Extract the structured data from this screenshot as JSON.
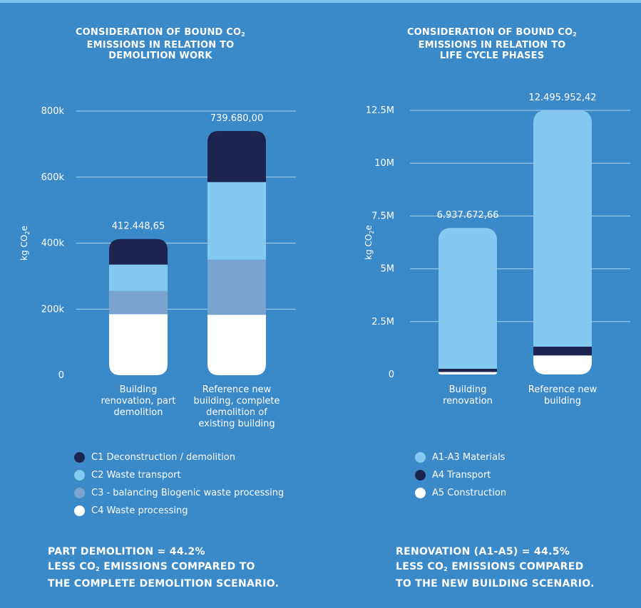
{
  "colors": {
    "background": "#3a89c9",
    "C1": "#1e2450",
    "C2": "#84c9f0",
    "C3": "#7aa3d0",
    "C4": "#ffffff",
    "A1A3": "#84c9f0",
    "A4": "#1e2450",
    "A5": "#ffffff"
  },
  "left": {
    "title_pre": "CONSIDERATION OF BOUND CO",
    "title_sub": "2",
    "title_l2": "EMISSIONS IN RELATION TO",
    "title_l3": "DEMOLITION WORK",
    "ylabel_pre": "kg CO",
    "ylabel_sub": "2",
    "ylabel_post": "e",
    "legend": [
      {
        "label": "C1 Deconstruction / demolition",
        "color": "#1e2450"
      },
      {
        "label": "C2 Waste transport",
        "color": "#84c9f0"
      },
      {
        "label": "C3 - balancing Biogenic waste processing",
        "color": "#7aa3d0"
      },
      {
        "label": "C4 Waste processing",
        "color": "#ffffff"
      }
    ],
    "summary_l1": "PART DEMOLITION = 44.2%",
    "summary_l2_pre": "LESS CO",
    "summary_l2_sub": "2",
    "summary_l2_post": " EMISSIONS COMPARED TO",
    "summary_l3": "THE COMPLETE DEMOLITION SCENARIO."
  },
  "right": {
    "title_pre": "CONSIDERATION OF BOUND CO",
    "title_sub": "2",
    "title_l2": "EMISSIONS IN RELATION TO",
    "title_l3": "LIFE CYCLE PHASES",
    "ylabel_pre": "kg CO",
    "ylabel_sub": "2",
    "ylabel_post": "e",
    "legend": [
      {
        "label": "A1-A3 Materials",
        "color": "#84c9f0"
      },
      {
        "label": "A4 Transport",
        "color": "#1e2450"
      },
      {
        "label": "A5 Construction",
        "color": "#ffffff"
      }
    ],
    "summary_l1": "RENOVATION (A1-A5) = 44.5%",
    "summary_l2_pre": "LESS CO",
    "summary_l2_sub": "2",
    "summary_l2_post": " EMISSIONS COMPARED",
    "summary_l3": "TO THE NEW BUILDING SCENARIO."
  },
  "chart_data": [
    {
      "type": "bar",
      "stacked": true,
      "ylabel": "kg CO2e",
      "ylim": [
        0,
        800000
      ],
      "yticks": [
        0,
        200000,
        400000,
        600000,
        800000
      ],
      "ytick_labels": [
        "0",
        "200k",
        "400k",
        "600k",
        "800k"
      ],
      "categories": [
        [
          "Building",
          "renovation, part",
          "demolition"
        ],
        [
          "Reference new",
          "building, complete",
          "demolition of",
          "existing building"
        ]
      ],
      "totals_labels": [
        "412.448,65",
        "739.680,00"
      ],
      "series": [
        {
          "name": "C4 Waste processing",
          "color": "#ffffff",
          "values": [
            185000,
            183000
          ]
        },
        {
          "name": "C3 - balancing Biogenic waste processing",
          "color": "#7aa3d0",
          "values": [
            70000,
            167000
          ]
        },
        {
          "name": "C2 Waste transport",
          "color": "#84c9f0",
          "values": [
            80000,
            235000
          ]
        },
        {
          "name": "C1 Deconstruction / demolition",
          "color": "#1e2450",
          "values": [
            77448.65,
            154680
          ]
        }
      ]
    },
    {
      "type": "bar",
      "stacked": true,
      "ylabel": "kg CO2e",
      "ylim": [
        0,
        12500000
      ],
      "yticks": [
        0,
        2500000,
        5000000,
        7500000,
        10000000,
        12500000
      ],
      "ytick_labels": [
        "0",
        "2.5M",
        "5M",
        "7.5M",
        "10M",
        "12.5M"
      ],
      "categories": [
        [
          "Building",
          "renovation"
        ],
        [
          "Reference new",
          "building"
        ]
      ],
      "totals_labels": [
        "6.937.672,66",
        "12.495.952,42"
      ],
      "series": [
        {
          "name": "A5 Construction",
          "color": "#ffffff",
          "values": [
            120000,
            900000
          ]
        },
        {
          "name": "A4 Transport",
          "color": "#1e2450",
          "values": [
            150000,
            420000
          ]
        },
        {
          "name": "A1-A3 Materials",
          "color": "#84c9f0",
          "values": [
            6667672.66,
            11175952.42
          ]
        }
      ]
    }
  ]
}
